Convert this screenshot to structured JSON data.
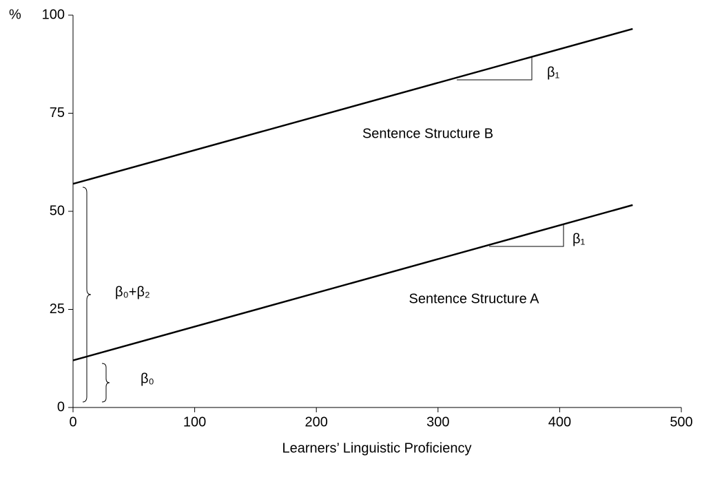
{
  "chart_data": {
    "type": "line",
    "x_label": "Learners’ Linguistic Proficiency",
    "y_label": "%",
    "x": [
      0,
      460
    ],
    "series": [
      {
        "name": "Sentence Structure A",
        "color": "#000000",
        "values": [
          12,
          51.6
        ]
      },
      {
        "name": "Sentence Structure B",
        "color": "#000000",
        "values": [
          57,
          96.5
        ]
      }
    ],
    "annotations": [
      "β₁",
      "β₁",
      "β₀+β₂",
      "β₀"
    ],
    "xlim": [
      0,
      500
    ],
    "xticks": [
      0,
      100,
      200,
      300,
      400,
      500
    ],
    "ylim": [
      0,
      100
    ],
    "yticks": [
      0,
      25,
      50,
      75,
      100
    ],
    "grid": false
  }
}
